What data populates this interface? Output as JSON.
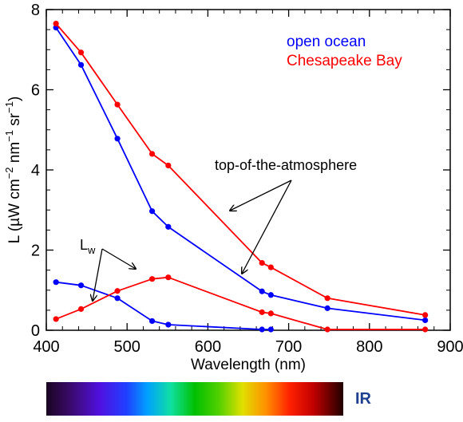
{
  "chart_data": {
    "type": "line",
    "xlabel": "Wavelength (nm)",
    "ylabel_parts": [
      "L (µW cm",
      "−2",
      " nm",
      "−1",
      " sr",
      "−1",
      ")"
    ],
    "xlim": [
      400,
      900
    ],
    "ylim": [
      0,
      8
    ],
    "xticks": [
      400,
      500,
      600,
      700,
      800,
      900
    ],
    "yticks": [
      0,
      2,
      4,
      6,
      8
    ],
    "grid": false,
    "legend_position": "top-right",
    "series": [
      {
        "name": "open ocean",
        "group": "top-of-the-atmosphere",
        "color": "#0000ff",
        "x": [
          412,
          443,
          488,
          531,
          551,
          667,
          678,
          748,
          869
        ],
        "y": [
          7.55,
          6.62,
          4.78,
          2.97,
          2.58,
          0.97,
          0.88,
          0.55,
          0.25
        ]
      },
      {
        "name": "Chesapeake Bay",
        "group": "top-of-the-atmosphere",
        "color": "#ff0000",
        "x": [
          412,
          443,
          488,
          531,
          551,
          667,
          678,
          748,
          869
        ],
        "y": [
          7.65,
          6.93,
          5.63,
          4.4,
          4.11,
          1.68,
          1.57,
          0.8,
          0.38
        ]
      },
      {
        "name": "open ocean",
        "group": "Lw",
        "color": "#0000ff",
        "x": [
          412,
          443,
          488,
          531,
          551,
          667,
          678
        ],
        "y": [
          1.2,
          1.12,
          0.8,
          0.23,
          0.14,
          -0.05,
          -0.05
        ]
      },
      {
        "name": "Chesapeake Bay",
        "group": "Lw",
        "color": "#ff0000",
        "x": [
          412,
          443,
          488,
          531,
          551,
          667,
          678,
          748,
          869
        ],
        "y": [
          0.28,
          0.53,
          0.98,
          1.28,
          1.32,
          0.45,
          0.42,
          -0.05,
          -0.05
        ]
      }
    ],
    "annotations": {
      "toa_label": "top-of-the-atmosphere",
      "lw_label": "L",
      "lw_subscript": "w"
    }
  },
  "spectrum_bar": {
    "ir_label": "IR",
    "ir_color": "#1f3f8f"
  }
}
